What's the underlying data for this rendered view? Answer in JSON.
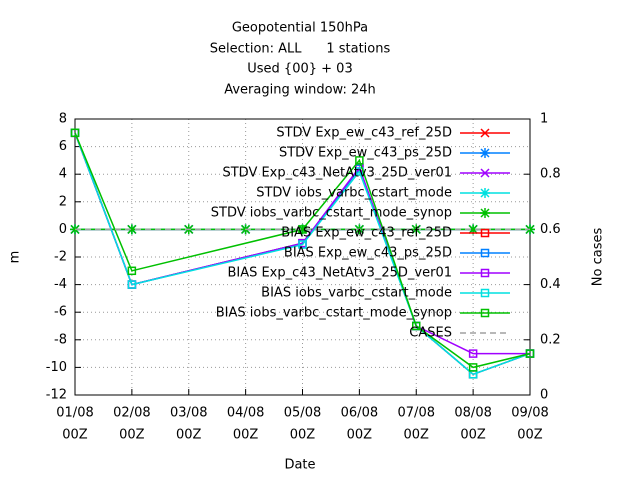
{
  "chart_data": {
    "type": "line",
    "title": [
      "Geopotential 150hPa",
      "Selection: ALL      1 stations",
      "Used {00} + 03",
      "Averaging window: 24h"
    ],
    "xlabel": "Date",
    "ylabel": "m",
    "y2label": "No cases",
    "xlim": [
      1,
      9
    ],
    "xticks": [
      {
        "value": 1,
        "label": "01/08"
      },
      {
        "value": 2,
        "label": "02/08"
      },
      {
        "value": 3,
        "label": "03/08"
      },
      {
        "value": 4,
        "label": "04/08"
      },
      {
        "value": 5,
        "label": "05/08"
      },
      {
        "value": 6,
        "label": "06/08"
      },
      {
        "value": 7,
        "label": "07/08"
      },
      {
        "value": 8,
        "label": "08/08"
      },
      {
        "value": 9,
        "label": "09/08"
      }
    ],
    "xtick_sublabel": "00Z",
    "ylim": [
      -12,
      8
    ],
    "yticks": [
      8,
      6,
      4,
      2,
      0,
      -2,
      -4,
      -6,
      -8,
      -10,
      -12
    ],
    "y2lim": [
      0,
      1
    ],
    "y2ticks": [
      1,
      0.8,
      0.6,
      0.4,
      0.2,
      0
    ],
    "grid": true,
    "legend": "top-right",
    "series": [
      {
        "name": "STDV Exp_ew_c43_ref_25D",
        "color": "#ff0000",
        "marker": "x",
        "x": [
          1,
          2,
          3,
          4,
          5,
          6,
          7,
          8,
          9
        ],
        "values": [
          0,
          0,
          0,
          0,
          0,
          0,
          0,
          0,
          0
        ]
      },
      {
        "name": "STDV Exp_ew_c43_ps_25D",
        "color": "#0080ff",
        "marker": "star",
        "x": [
          1,
          2,
          3,
          4,
          5,
          6,
          7,
          8,
          9
        ],
        "values": [
          0,
          0,
          0,
          0,
          0,
          0,
          0,
          0,
          0
        ]
      },
      {
        "name": "STDV Exp_c43_NetAtv3_25D_ver01",
        "color": "#a000ff",
        "marker": "x",
        "x": [
          1,
          2,
          3,
          4,
          5,
          6,
          7,
          8,
          9
        ],
        "values": [
          0,
          0,
          0,
          0,
          0,
          0,
          0,
          0,
          0
        ]
      },
      {
        "name": "STDV iobs_varbc_cstart_mode",
        "color": "#00e0e0",
        "marker": "star",
        "x": [
          1,
          2,
          3,
          4,
          5,
          6,
          7,
          8,
          9
        ],
        "values": [
          0,
          0,
          0,
          0,
          0,
          0,
          0,
          0,
          0
        ]
      },
      {
        "name": "STDV iobs_varbc_cstart_mode_synop",
        "color": "#00c000",
        "marker": "star",
        "x": [
          1,
          2,
          3,
          4,
          5,
          6,
          7,
          8,
          9
        ],
        "values": [
          0,
          0,
          0,
          0,
          0,
          0,
          0,
          0,
          0
        ]
      },
      {
        "name": "BIAS Exp_ew_c43_ref_25D",
        "color": "#ff0000",
        "marker": "square",
        "x": [
          1,
          2,
          5,
          6,
          7,
          8,
          9
        ],
        "values": [
          7,
          -4,
          -1,
          4.4,
          -7,
          -10.5,
          -9
        ]
      },
      {
        "name": "BIAS Exp_ew_c43_ps_25D",
        "color": "#0080ff",
        "marker": "square",
        "x": [
          1,
          2,
          5,
          6,
          7,
          8,
          9
        ],
        "values": [
          7,
          -4,
          -1,
          4.4,
          -7,
          -10.5,
          -9
        ]
      },
      {
        "name": "BIAS Exp_c43_NetAtv3_25D_ver01",
        "color": "#a000ff",
        "marker": "square",
        "x": [
          1,
          2,
          5,
          6,
          7,
          8,
          9
        ],
        "values": [
          7,
          -4,
          -1,
          4.5,
          -7,
          -9,
          -9
        ]
      },
      {
        "name": "BIAS iobs_varbc_cstart_mode",
        "color": "#00e0e0",
        "marker": "square",
        "x": [
          1,
          2,
          5,
          6,
          7,
          8,
          9
        ],
        "values": [
          7,
          -4,
          -1.1,
          4.2,
          -7,
          -10.5,
          -9
        ]
      },
      {
        "name": "BIAS iobs_varbc_cstart_mode_synop",
        "color": "#00c000",
        "marker": "square",
        "x": [
          1,
          2,
          5,
          6,
          7,
          8,
          9
        ],
        "values": [
          7,
          -3,
          0,
          5,
          -7,
          -10,
          -9
        ]
      },
      {
        "name": "CASES",
        "color": "#a0a0a0",
        "marker": "none",
        "dashed": true,
        "axis": "y2",
        "x": [
          1,
          2,
          3,
          4,
          5,
          6,
          7,
          8,
          9
        ],
        "values": [
          0.6,
          0.6,
          0.6,
          0.6,
          0.6,
          0.6,
          0.6,
          0.6,
          0.6
        ]
      }
    ]
  }
}
